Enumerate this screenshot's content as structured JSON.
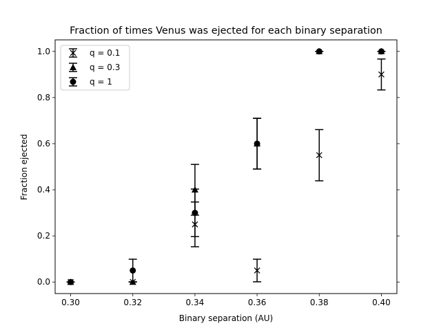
{
  "chart_data": {
    "type": "scatter",
    "title": "Fraction of times Venus was ejected for each binary separation",
    "xlabel": "Binary separation (AU)",
    "ylabel": "Fraction ejected",
    "xlim": [
      0.295,
      0.405
    ],
    "ylim": [
      -0.05,
      1.05
    ],
    "xticks": [
      "0.30",
      "0.32",
      "0.34",
      "0.36",
      "0.38",
      "0.40"
    ],
    "yticks": [
      "0.0",
      "0.2",
      "0.4",
      "0.6",
      "0.8",
      "1.0"
    ],
    "grid": false,
    "legend_position": "top-left",
    "error_bars": true,
    "series": [
      {
        "name": "q = 0.1",
        "marker": "x",
        "color": "#000000",
        "x": [
          0.3,
          0.32,
          0.34,
          0.36,
          0.38,
          0.4
        ],
        "y": [
          0.0,
          0.0,
          0.25,
          0.05,
          0.55,
          0.9
        ],
        "err": [
          0.0,
          0.0,
          0.097,
          0.049,
          0.111,
          0.067
        ]
      },
      {
        "name": "q = 0.3",
        "marker": "triangle",
        "color": "#000000",
        "x": [
          0.3,
          0.32,
          0.34,
          0.36,
          0.38,
          0.4
        ],
        "y": [
          0.0,
          0.0,
          0.4,
          0.6,
          1.0,
          1.0
        ],
        "err": [
          0.0,
          0.0,
          0.11,
          0.11,
          0.0,
          0.0
        ]
      },
      {
        "name": "q = 1",
        "marker": "circle",
        "color": "#000000",
        "x": [
          0.3,
          0.32,
          0.34,
          0.36,
          0.38,
          0.4
        ],
        "y": [
          0.0,
          0.05,
          0.3,
          0.6,
          1.0,
          1.0
        ],
        "err": [
          0.0,
          0.049,
          0.103,
          0.11,
          0.0,
          0.0
        ]
      }
    ]
  }
}
